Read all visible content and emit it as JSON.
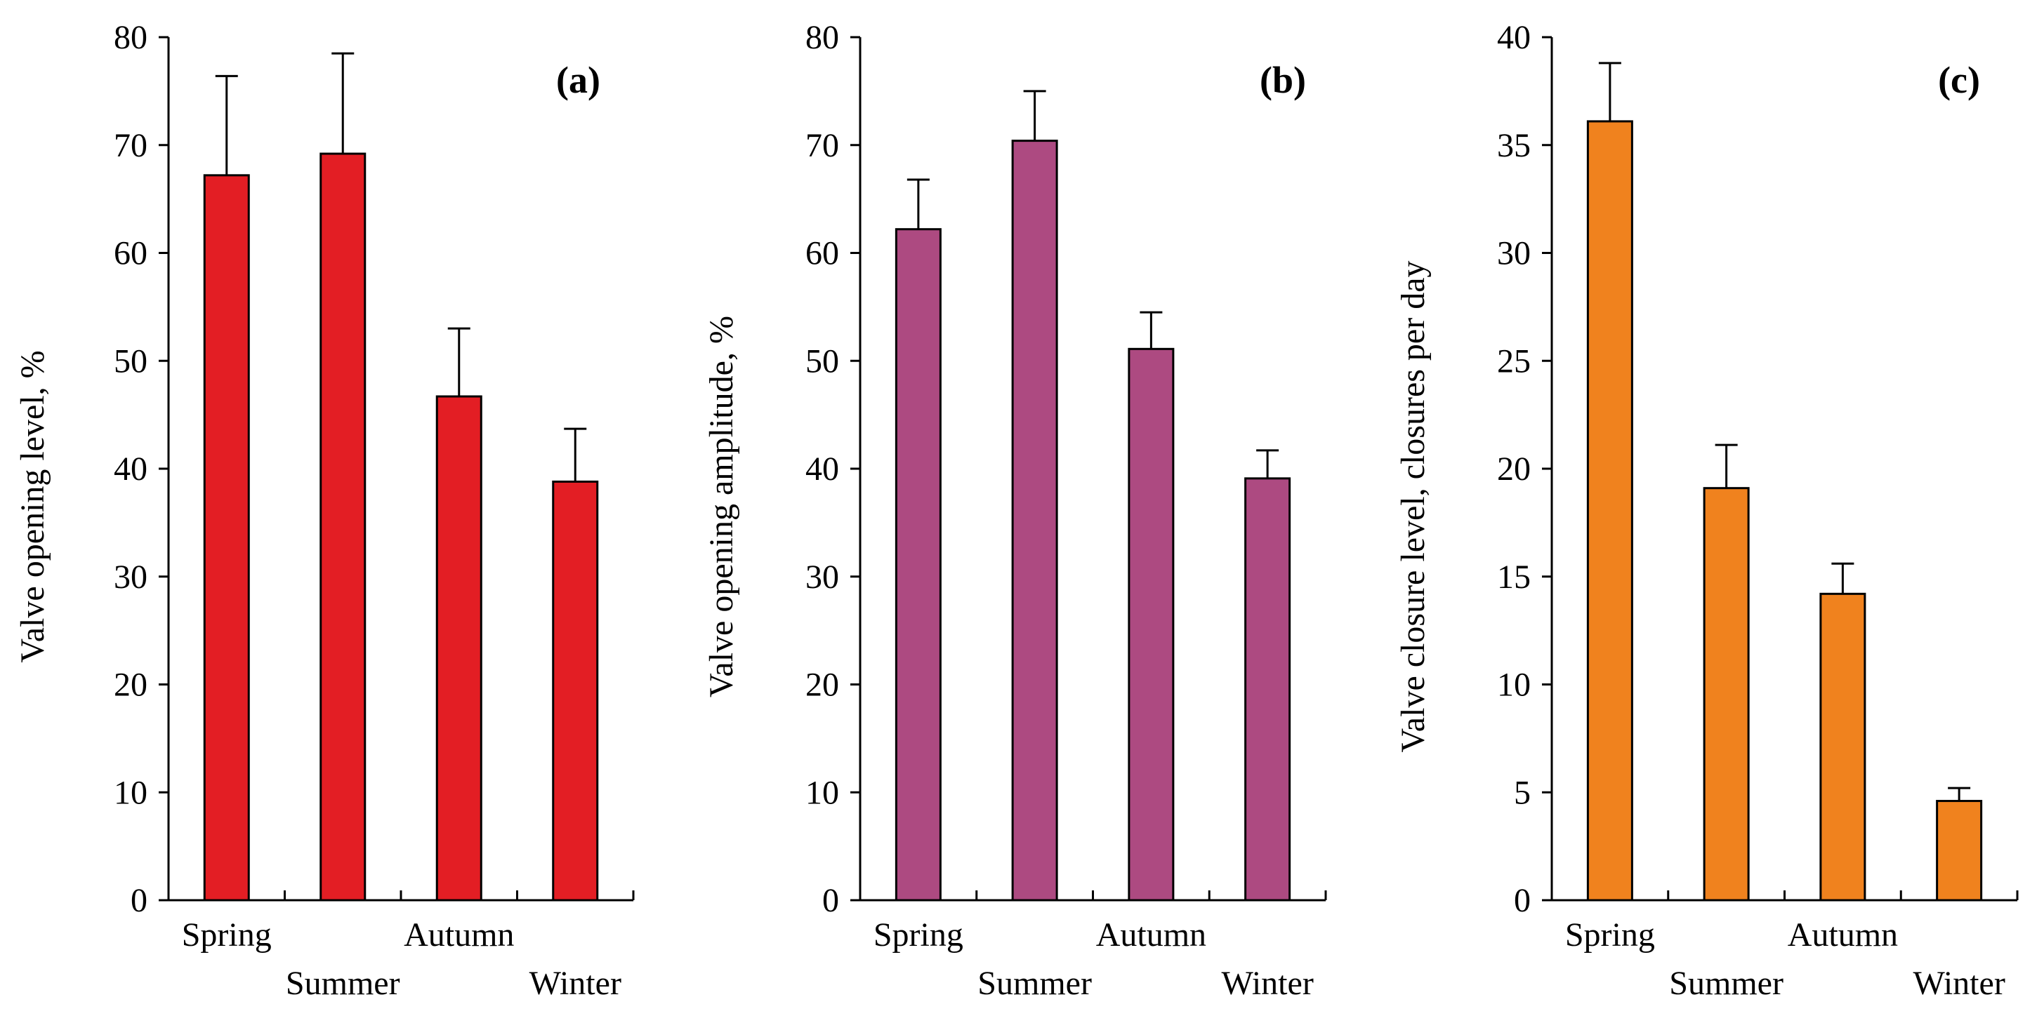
{
  "figure": {
    "categories": [
      "Spring",
      "Summer",
      "Autumn",
      "Winter"
    ]
  },
  "chart_data": [
    {
      "type": "bar",
      "panel": "(a)",
      "title": "",
      "xlabel": "",
      "ylabel": "Valve opening level, %",
      "ylim": [
        0,
        80
      ],
      "yticks": [
        0,
        10,
        20,
        30,
        40,
        50,
        60,
        70,
        80
      ],
      "categories": [
        "Spring",
        "Summer",
        "Autumn",
        "Winter"
      ],
      "values": [
        67.2,
        69.2,
        46.7,
        38.8
      ],
      "errors": [
        9.2,
        9.3,
        6.3,
        4.9
      ],
      "color": "#e31e24",
      "grid": false,
      "legend": "none"
    },
    {
      "type": "bar",
      "panel": "(b)",
      "title": "",
      "xlabel": "",
      "ylabel": "Valve opening amplitude, %",
      "ylim": [
        0,
        80
      ],
      "yticks": [
        0,
        10,
        20,
        30,
        40,
        50,
        60,
        70,
        80
      ],
      "categories": [
        "Spring",
        "Summer",
        "Autumn",
        "Winter"
      ],
      "values": [
        62.2,
        70.4,
        51.1,
        39.1
      ],
      "errors": [
        4.6,
        4.6,
        3.4,
        2.6
      ],
      "color": "#ad4a81",
      "grid": false,
      "legend": "none"
    },
    {
      "type": "bar",
      "panel": "(c)",
      "title": "",
      "xlabel": "",
      "ylabel": "Valve closure level, closures per day",
      "ylim": [
        0,
        40
      ],
      "yticks": [
        0,
        5,
        10,
        15,
        20,
        25,
        30,
        35,
        40
      ],
      "categories": [
        "Spring",
        "Summer",
        "Autumn",
        "Winter"
      ],
      "values": [
        36.1,
        19.1,
        14.2,
        4.6
      ],
      "errors": [
        2.7,
        2.0,
        1.4,
        0.6
      ],
      "color": "#f0821e",
      "grid": false,
      "legend": "none"
    }
  ]
}
